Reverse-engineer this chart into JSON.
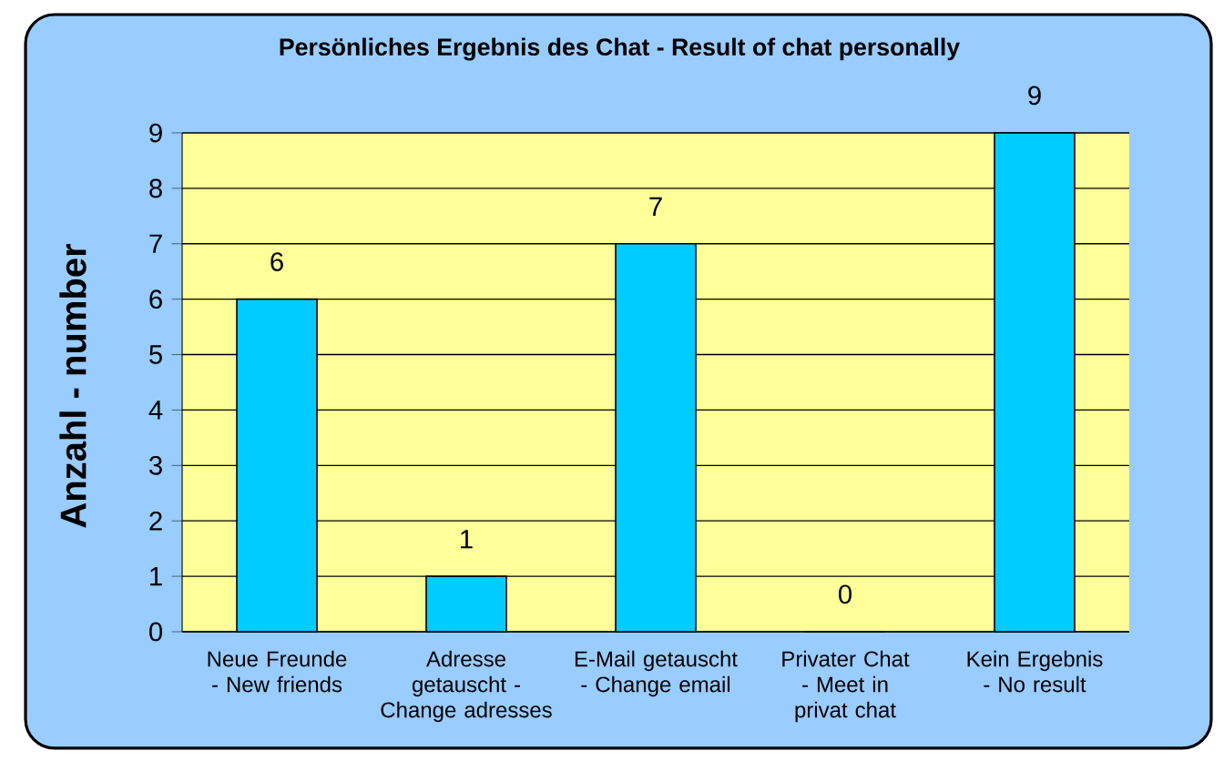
{
  "chart_data": {
    "type": "bar",
    "title": "Persönliches Ergebnis des Chat - Result of chat personally",
    "ylabel": "Anzahl - number",
    "categories": [
      "Neue Freunde - New friends",
      "Adresse getauscht - Change adresses",
      "E-Mail getauscht - Change email",
      "Privater Chat - Meet in privat chat",
      "Kein Ergebnis - No result"
    ],
    "values": [
      6,
      1,
      7,
      0,
      9
    ],
    "color": "#00ccff",
    "ylim": [
      0,
      9
    ],
    "yticks": [
      0,
      1,
      2,
      3,
      4,
      5,
      6,
      7,
      8,
      9
    ],
    "grid": "y",
    "data_labels": true
  }
}
